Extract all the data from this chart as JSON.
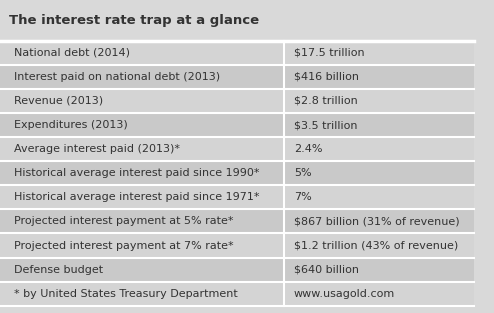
{
  "title": "The interest rate trap at a glance",
  "rows": [
    [
      "National debt (2014)",
      "$17.5 trillion"
    ],
    [
      "Interest paid on national debt (2013)",
      "$416 billion"
    ],
    [
      "Revenue (2013)",
      "$2.8 trillion"
    ],
    [
      "Expenditures (2013)",
      "$3.5 trillion"
    ],
    [
      "Average interest paid (2013)*",
      "2.4%"
    ],
    [
      "Historical average interest paid since 1990*",
      "5%"
    ],
    [
      "Historical average interest paid since 1971*",
      "7%"
    ],
    [
      "Projected interest payment at 5% rate*",
      "$867 billion (31% of revenue)"
    ],
    [
      "Projected interest payment at 7% rate*",
      "$1.2 trillion (43% of revenue)"
    ],
    [
      "Defense budget",
      "$640 billion"
    ],
    [
      "* by United States Treasury Department",
      "www.usagold.com"
    ]
  ],
  "bg_color": "#d9d9d9",
  "header_bg": "#d9d9d9",
  "title_fontsize": 9.5,
  "row_fontsize": 8,
  "text_color": "#333333",
  "col_split": 0.6,
  "divider_color": "#ffffff"
}
